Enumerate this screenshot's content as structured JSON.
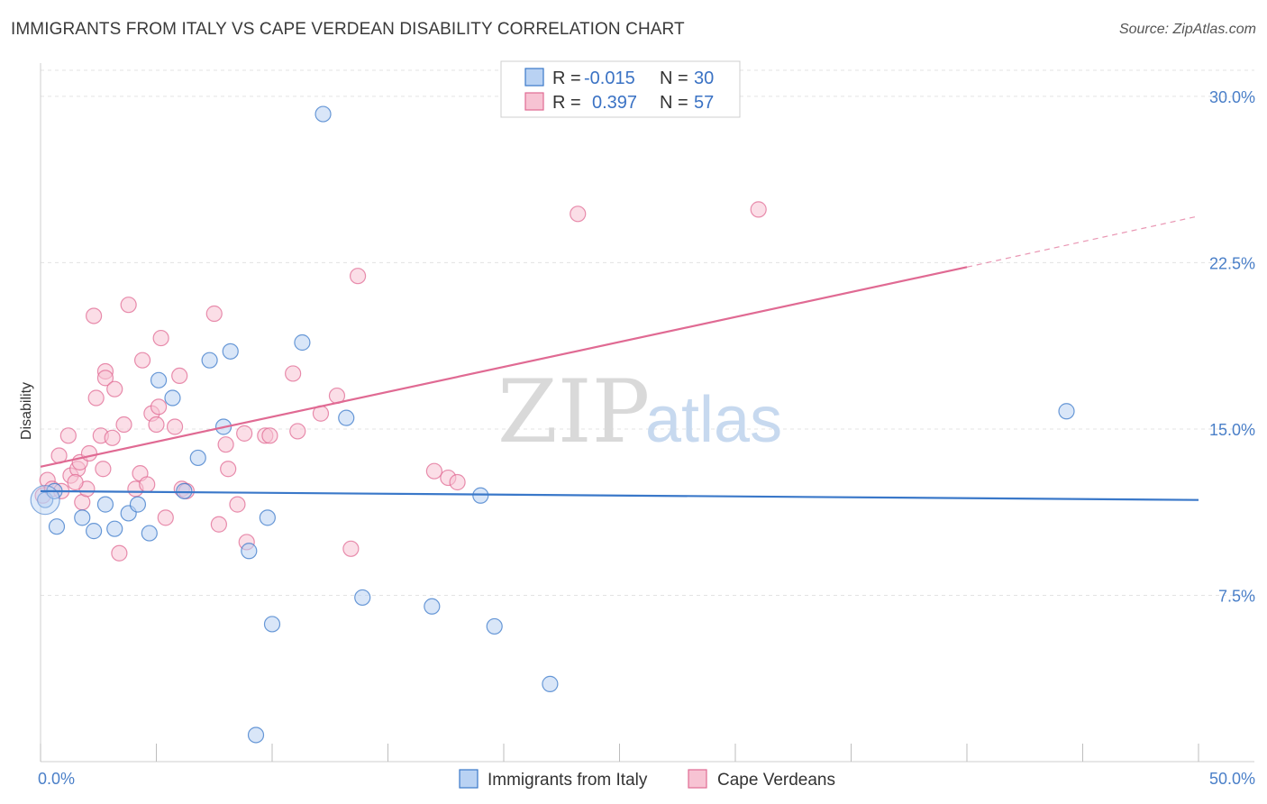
{
  "header": {
    "title": "IMMIGRANTS FROM ITALY VS CAPE VERDEAN DISABILITY CORRELATION CHART",
    "source": "Source: ZipAtlas.com"
  },
  "watermark": {
    "zip": "ZIP",
    "atlas": "atlas"
  },
  "colors": {
    "blue": "#3a78c9",
    "blue_fill": "#b9d2f3",
    "pink": "#e06a93",
    "pink_fill": "#f7c3d3",
    "grid": "#e3e3e3",
    "tick_text": "#4a7fc8"
  },
  "legend": {
    "rows": [
      {
        "r_label": "R =",
        "r_value": "-0.015",
        "n_label": "N =",
        "n_value": "30"
      },
      {
        "r_label": "R =",
        "r_value": "0.397",
        "n_label": "N =",
        "n_value": "57"
      }
    ]
  },
  "chart_data": {
    "type": "scatter",
    "ylabel": "Disability",
    "xlim": [
      0,
      50
    ],
    "ylim": [
      0,
      31.5
    ],
    "x_tick_labels": [
      "0.0%",
      "50.0%"
    ],
    "y_tick_values": [
      7.5,
      15.0,
      22.5,
      30.0
    ],
    "y_tick_labels": [
      "7.5%",
      "15.0%",
      "22.5%",
      "30.0%"
    ],
    "grid": true,
    "series": [
      {
        "name": "Immigrants from Italy",
        "color": "#3a78c9",
        "trend": {
          "x": [
            0,
            50
          ],
          "y": [
            12.2,
            11.8
          ]
        },
        "points": [
          [
            0.2,
            11.8
          ],
          [
            0.6,
            12.2
          ],
          [
            0.7,
            10.6
          ],
          [
            1.8,
            11.0
          ],
          [
            2.3,
            10.4
          ],
          [
            2.8,
            11.6
          ],
          [
            3.2,
            10.5
          ],
          [
            3.8,
            11.2
          ],
          [
            4.2,
            11.6
          ],
          [
            4.7,
            10.3
          ],
          [
            5.1,
            17.2
          ],
          [
            5.7,
            16.4
          ],
          [
            6.2,
            12.2
          ],
          [
            6.8,
            13.7
          ],
          [
            7.3,
            18.1
          ],
          [
            7.9,
            15.1
          ],
          [
            8.2,
            18.5
          ],
          [
            9.0,
            9.5
          ],
          [
            9.3,
            1.2
          ],
          [
            9.8,
            11.0
          ],
          [
            10.0,
            6.2
          ],
          [
            11.3,
            18.9
          ],
          [
            12.2,
            29.2
          ],
          [
            13.2,
            15.5
          ],
          [
            13.9,
            7.4
          ],
          [
            16.9,
            7.0
          ],
          [
            19.0,
            12.0
          ],
          [
            19.6,
            6.1
          ],
          [
            22.0,
            3.5
          ],
          [
            44.3,
            15.8
          ]
        ]
      },
      {
        "name": "Cape Verdeans",
        "color": "#e06a93",
        "trend": {
          "x": [
            0,
            40
          ],
          "y": [
            13.3,
            22.3
          ]
        },
        "trend_dashed": {
          "x": [
            40,
            50
          ],
          "y": [
            22.3,
            24.6
          ]
        },
        "points": [
          [
            0.1,
            12.0
          ],
          [
            0.3,
            12.7
          ],
          [
            0.5,
            12.3
          ],
          [
            0.8,
            13.8
          ],
          [
            0.9,
            12.2
          ],
          [
            1.2,
            14.7
          ],
          [
            1.3,
            12.9
          ],
          [
            1.6,
            13.2
          ],
          [
            1.7,
            13.5
          ],
          [
            1.8,
            11.7
          ],
          [
            2.0,
            12.3
          ],
          [
            2.1,
            13.9
          ],
          [
            2.3,
            20.1
          ],
          [
            2.4,
            16.4
          ],
          [
            2.6,
            14.7
          ],
          [
            2.7,
            13.2
          ],
          [
            2.8,
            17.6
          ],
          [
            2.8,
            17.3
          ],
          [
            3.1,
            14.6
          ],
          [
            3.2,
            16.8
          ],
          [
            3.4,
            9.4
          ],
          [
            3.6,
            15.2
          ],
          [
            3.8,
            20.6
          ],
          [
            4.1,
            12.3
          ],
          [
            4.3,
            13.0
          ],
          [
            4.4,
            18.1
          ],
          [
            4.6,
            12.5
          ],
          [
            4.8,
            15.7
          ],
          [
            5.0,
            15.2
          ],
          [
            5.1,
            16.0
          ],
          [
            5.2,
            19.1
          ],
          [
            5.4,
            11.0
          ],
          [
            5.8,
            15.1
          ],
          [
            6.0,
            17.4
          ],
          [
            6.1,
            12.3
          ],
          [
            6.3,
            12.2
          ],
          [
            7.5,
            20.2
          ],
          [
            7.7,
            10.7
          ],
          [
            8.0,
            14.3
          ],
          [
            8.1,
            13.2
          ],
          [
            8.5,
            11.6
          ],
          [
            8.8,
            14.8
          ],
          [
            8.9,
            9.9
          ],
          [
            9.7,
            14.7
          ],
          [
            9.9,
            14.7
          ],
          [
            10.9,
            17.5
          ],
          [
            11.1,
            14.9
          ],
          [
            12.1,
            15.7
          ],
          [
            12.8,
            16.5
          ],
          [
            13.4,
            9.6
          ],
          [
            13.7,
            21.9
          ],
          [
            17.0,
            13.1
          ],
          [
            17.6,
            12.8
          ],
          [
            18.0,
            12.6
          ],
          [
            23.2,
            24.7
          ],
          [
            31.0,
            24.9
          ],
          [
            1.5,
            12.6
          ]
        ]
      }
    ]
  }
}
